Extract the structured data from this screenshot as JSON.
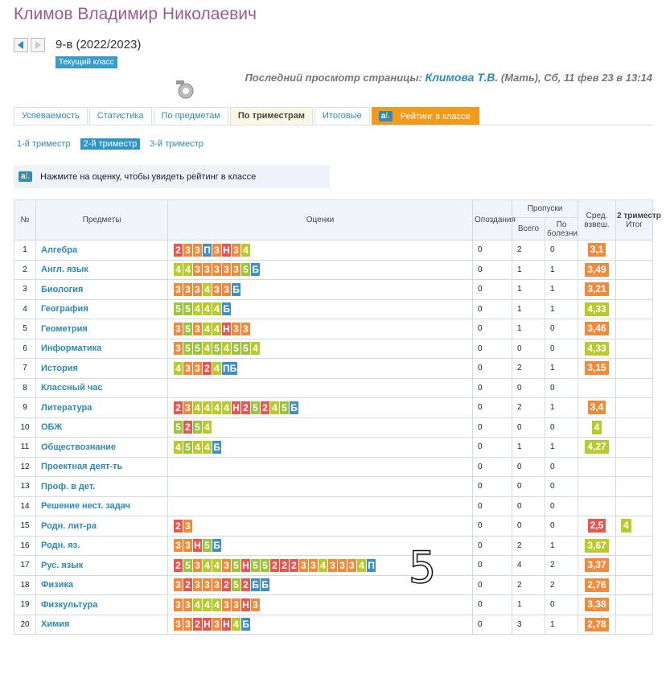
{
  "header": {
    "name": "Климов Владимир Николаевич",
    "class": "9-в (2022/2023)",
    "badge": "Текущий класс",
    "last_view_label": "Последний просмотр страницы:",
    "last_view_user": "Климова Т.В.",
    "last_view_details": "(Мать), Сб, 11 фев 23 в 13:14"
  },
  "tabs": [
    "Успеваемость",
    "Статистика",
    "По предметам",
    "По триместрам",
    "Итоговые",
    "Рейтинг в классе"
  ],
  "active_tab": 3,
  "terms": [
    "1-й триместр",
    "2-й триместр",
    "3-й триместр"
  ],
  "active_term": 1,
  "notice": "Нажмите на оценку, чтобы увидеть рейтинг в классе",
  "grade_colors": {
    "2": "#e8574f",
    "3": "#f08a3c",
    "4": "#b9cb2c",
    "5": "#9cc53a",
    "Н": "#e8574f",
    "П": "#3f8fc7",
    "Б": "#3f8fc7",
    "ПБ": "#3f8fc7"
  },
  "table": {
    "columns": {
      "num": "№",
      "subject": "Предметы",
      "grades": "Оценки",
      "late": "Опоздания",
      "absences": "Пропуски",
      "absences_total": "Всего",
      "absences_sick": "По болезни",
      "average": "Сред. взвеш.",
      "term": "2 триместр",
      "final": "Итог"
    },
    "rows": [
      {
        "num": 1,
        "subject": "Алгебра",
        "grades": [
          "2",
          "3",
          "3",
          "П",
          "3",
          "Н",
          "3",
          "4"
        ],
        "late": 0,
        "absent": 2,
        "sick": 0,
        "average": "3,1"
      },
      {
        "num": 2,
        "subject": "Англ. язык",
        "grades": [
          "4",
          "4",
          "3",
          "3",
          "3",
          "3",
          "3",
          "5",
          "Б"
        ],
        "late": 0,
        "absent": 1,
        "sick": 1,
        "average": "3,49"
      },
      {
        "num": 3,
        "subject": "Биология",
        "grades": [
          "3",
          "3",
          "3",
          "4",
          "3",
          "3",
          "Б"
        ],
        "late": 0,
        "absent": 1,
        "sick": 1,
        "average": "3,21"
      },
      {
        "num": 4,
        "subject": "География",
        "grades": [
          "5",
          "5",
          "4",
          "4",
          "4",
          "Б"
        ],
        "late": 0,
        "absent": 1,
        "sick": 1,
        "average": "4,33"
      },
      {
        "num": 5,
        "subject": "Геометрия",
        "grades": [
          "3",
          "5",
          "3",
          "4",
          "4",
          "Н",
          "3",
          "3"
        ],
        "late": 0,
        "absent": 1,
        "sick": 0,
        "average": "3,46"
      },
      {
        "num": 6,
        "subject": "Информатика",
        "grades": [
          "3",
          "5",
          "5",
          "4",
          "5",
          "4",
          "5",
          "5",
          "4"
        ],
        "late": 0,
        "absent": 0,
        "sick": 0,
        "average": "4,33"
      },
      {
        "num": 7,
        "subject": "История",
        "grades": [
          "4",
          "3",
          "3",
          "2",
          "4",
          "ПБ"
        ],
        "late": 0,
        "absent": 2,
        "sick": 1,
        "average": "3,15"
      },
      {
        "num": 8,
        "subject": "Классный час",
        "grades": [],
        "late": 0,
        "absent": 0,
        "sick": 0
      },
      {
        "num": 9,
        "subject": "Литература",
        "grades": [
          "2",
          "3",
          "4",
          "4",
          "4",
          "4",
          "Н",
          "2",
          "5",
          "2",
          "4",
          "5",
          "Б"
        ],
        "late": 0,
        "absent": 2,
        "sick": 1,
        "average": "3,4"
      },
      {
        "num": 10,
        "subject": "ОБЖ",
        "grades": [
          "5",
          "2",
          "5",
          "4"
        ],
        "late": 0,
        "absent": 0,
        "sick": 0,
        "average": "4"
      },
      {
        "num": 11,
        "subject": "Обществознание",
        "grades": [
          "4",
          "5",
          "4",
          "4",
          "Б"
        ],
        "late": 0,
        "absent": 1,
        "sick": 1,
        "average": "4,27"
      },
      {
        "num": 12,
        "subject": "Проектная деят-ть",
        "grades": [],
        "late": 0,
        "absent": 0,
        "sick": 0
      },
      {
        "num": 13,
        "subject": "Проф. в дет.",
        "grades": [],
        "late": 0,
        "absent": 0,
        "sick": 0
      },
      {
        "num": 14,
        "subject": "Решение нест. задач",
        "grades": [],
        "late": 0,
        "absent": 0,
        "sick": 0
      },
      {
        "num": 15,
        "subject": "Родн. лит-ра",
        "grades": [
          "2",
          "3"
        ],
        "late": 0,
        "absent": 0,
        "sick": 0,
        "average": "2,5",
        "final": "4"
      },
      {
        "num": 16,
        "subject": "Родн. яз.",
        "grades": [
          "3",
          "3",
          "Н",
          "5",
          "Б"
        ],
        "late": 0,
        "absent": 2,
        "sick": 1,
        "average": "3,67"
      },
      {
        "num": 17,
        "subject": "Рус. язык",
        "grades": [
          "2",
          "5",
          "3",
          "4",
          "4",
          "3",
          "5",
          "Н",
          "5",
          "5",
          "2",
          "2",
          "2",
          "3",
          "3",
          "4",
          "3",
          "3",
          "3",
          "4",
          "П"
        ],
        "late": 0,
        "absent": 4,
        "sick": 2,
        "average": "3,37"
      },
      {
        "num": 18,
        "subject": "Физика",
        "grades": [
          "3",
          "2",
          "3",
          "3",
          "3",
          "2",
          "5",
          "2",
          "Б",
          "Б"
        ],
        "late": 0,
        "absent": 2,
        "sick": 2,
        "average": "2,76"
      },
      {
        "num": 19,
        "subject": "Физкультура",
        "grades": [
          "3",
          "3",
          "4",
          "4",
          "4",
          "3",
          "3",
          "Н",
          "3"
        ],
        "late": 0,
        "absent": 1,
        "sick": 0,
        "average": "3,38"
      },
      {
        "num": 20,
        "subject": "Химия",
        "grades": [
          "3",
          "3",
          "2",
          "Н",
          "3",
          "Н",
          "4",
          "Б"
        ],
        "late": 0,
        "absent": 3,
        "sick": 1,
        "average": "2,78"
      }
    ]
  },
  "overlay": "5"
}
